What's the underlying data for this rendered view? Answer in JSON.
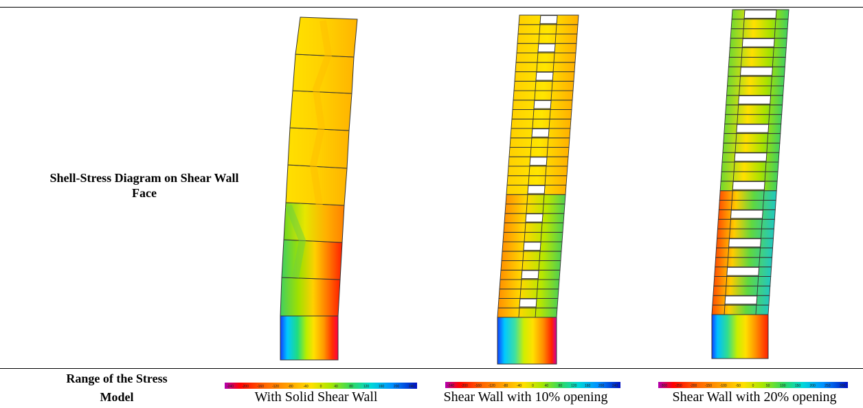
{
  "table": {
    "row_labels": {
      "diagram": "Shell-Stress Diagram on Shear Wall Face",
      "range": "Range of the Stress",
      "model": "Model"
    },
    "models": [
      "With Solid Shear Wall",
      "Shear Wall with 10% opening",
      "Shear Wall with 20% opening"
    ]
  },
  "legend_scales": [
    [
      "-240",
      "-200",
      "-160",
      "-120",
      "-80",
      "-40",
      "0",
      "40",
      "80",
      "120",
      "160",
      "200",
      "240"
    ],
    [
      "-240",
      "-200",
      "-160",
      "-120",
      "-80",
      "-40",
      "0",
      "40",
      "80",
      "120",
      "160",
      "200",
      "240"
    ],
    [
      "-300",
      "-250",
      "-200",
      "-150",
      "-100",
      "-50",
      "0",
      "50",
      "100",
      "150",
      "200",
      "250",
      "300"
    ]
  ],
  "colors": {
    "contour_scale": [
      "#b000b0",
      "#ff0000",
      "#ff5a00",
      "#ff9a00",
      "#ffc800",
      "#ffee00",
      "#c8ee00",
      "#60dd20",
      "#00cc66",
      "#00e6e6",
      "#00a0ff",
      "#1040ff",
      "#0000c8"
    ]
  }
}
